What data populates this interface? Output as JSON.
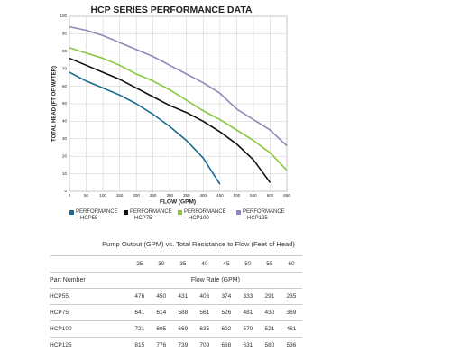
{
  "chart_data": {
    "type": "line",
    "title": "HCP SERIES PERFORMANCE DATA",
    "x_label": "FLOW (GPM)",
    "y_label": "TOTAL HEAD (FT OF WATER)",
    "x": [
      0,
      50,
      100,
      150,
      200,
      250,
      300,
      350,
      400,
      450,
      500,
      550,
      600,
      650
    ],
    "series": [
      {
        "name": "PERFORMANCE – HCP55",
        "color": "#1b6c90",
        "values": [
          68,
          63,
          59,
          55,
          50,
          44,
          37,
          29,
          19,
          4,
          null,
          null,
          null,
          null
        ]
      },
      {
        "name": "PERFORMANCE – HCP75",
        "color": "#111111",
        "values": [
          76,
          72,
          68,
          64,
          59,
          54,
          49,
          45,
          40,
          34,
          27,
          18,
          5,
          null
        ]
      },
      {
        "name": "PERFORMANCE – HCP100",
        "color": "#8dc63f",
        "values": [
          82,
          79,
          76,
          72,
          67,
          63,
          58,
          52,
          46,
          41,
          35,
          29,
          22,
          12
        ]
      },
      {
        "name": "PERFORMANCE – HCP125",
        "color": "#8b8bb8",
        "values": [
          94,
          92,
          89,
          85,
          81,
          77,
          72,
          67,
          62,
          56,
          47,
          41,
          35,
          26
        ]
      }
    ],
    "xlim": [
      0,
      650
    ],
    "xticks": [
      0,
      50,
      100,
      150,
      200,
      250,
      300,
      350,
      400,
      450,
      500,
      550,
      600,
      650
    ],
    "ylim": [
      0,
      100
    ],
    "yticks": [
      0,
      10,
      20,
      30,
      40,
      50,
      60,
      70,
      80,
      90,
      100
    ],
    "grid": true,
    "legend": "bottom"
  },
  "table": {
    "title": "Pump Output (GPM) vs. Total Resistance to Flow (Feet of Head)",
    "heads": [
      25,
      30,
      35,
      40,
      45,
      50,
      55,
      60
    ],
    "part_header": "Part Number",
    "flow_header": "Flow Rate (GPM)",
    "rows": [
      [
        "HCP55",
        476,
        450,
        431,
        406,
        374,
        333,
        291,
        235
      ],
      [
        "HCP75",
        641,
        614,
        588,
        561,
        526,
        481,
        430,
        369
      ],
      [
        "HCP100",
        721,
        695,
        669,
        635,
        602,
        570,
        521,
        461
      ],
      [
        "HCP125",
        815,
        776,
        739,
        709,
        668,
        631,
        580,
        536
      ]
    ]
  }
}
